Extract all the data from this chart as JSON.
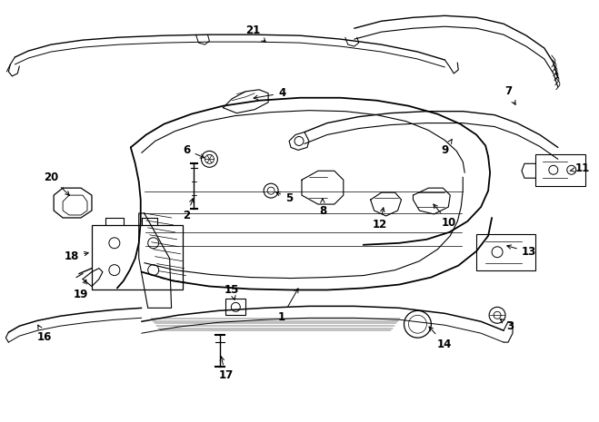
{
  "background_color": "#ffffff",
  "line_color": "#000000",
  "fig_width": 6.59,
  "fig_height": 4.65,
  "dpi": 100,
  "label_fontsize": 8.5
}
